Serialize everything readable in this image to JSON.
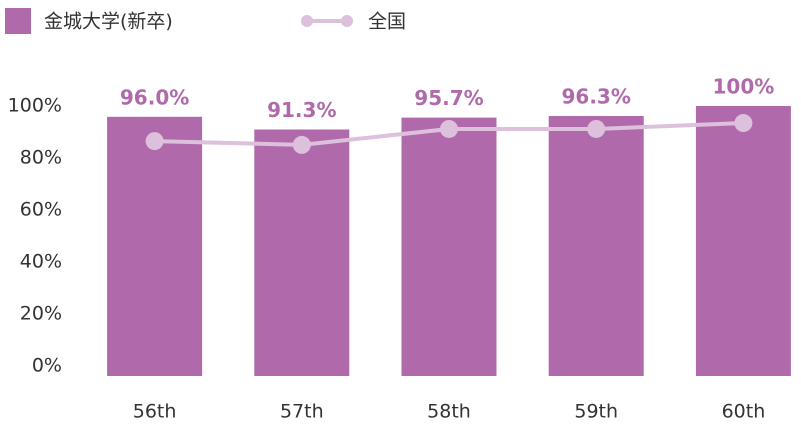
{
  "chart_data": {
    "type": "bar-line",
    "categories": [
      "56th",
      "57th",
      "58th",
      "59th",
      "60th"
    ],
    "series": [
      {
        "name": "金城大学(新卒)",
        "color": "#b06aab",
        "type": "bar",
        "values": [
          96.0,
          91.3,
          95.7,
          96.3,
          100
        ],
        "value_labels": [
          "96.0%",
          "91.3%",
          "95.7%",
          "96.3%",
          "100%"
        ]
      },
      {
        "name": "全国",
        "color": "#dcc0dc",
        "type": "line",
        "values": [
          87.0,
          85.6,
          91.5,
          91.5,
          93.7
        ]
      }
    ],
    "ylim": [
      0,
      100
    ],
    "yticks": [
      {
        "value": 0,
        "label": "0%"
      },
      {
        "value": 20,
        "label": "20%"
      },
      {
        "value": 40,
        "label": "40%"
      },
      {
        "value": 60,
        "label": "60%"
      },
      {
        "value": 80,
        "label": "80%"
      },
      {
        "value": 100,
        "label": "100%"
      }
    ],
    "grid": false
  }
}
